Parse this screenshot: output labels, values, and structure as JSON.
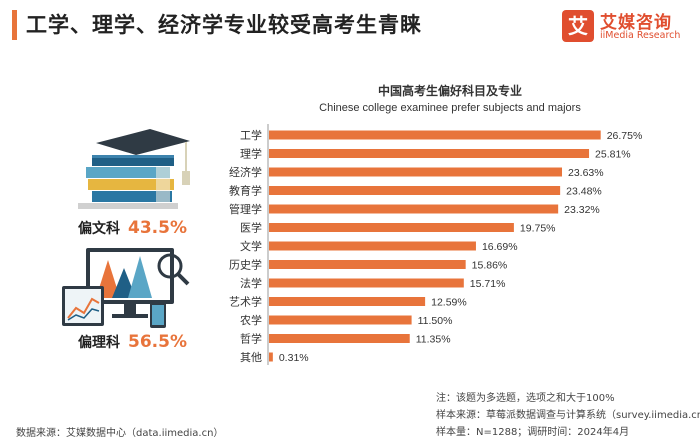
{
  "header": {
    "title": "工学、理学、经济学专业较受高考生青睐"
  },
  "brand": {
    "mark": "艾",
    "name": "艾媒咨询",
    "sub": "iiMedia Research",
    "color": "#e04e2f"
  },
  "left_panel": {
    "liberal": {
      "label": "偏文科",
      "value": "43.5%"
    },
    "science": {
      "label": "偏理科",
      "value": "56.5%"
    }
  },
  "chart_data": {
    "type": "bar",
    "orientation": "horizontal",
    "title": "中国高考生偏好科目及专业",
    "subtitle": "Chinese college examinee prefer subjects and majors",
    "categories": [
      "工学",
      "理学",
      "经济学",
      "教育学",
      "管理学",
      "医学",
      "文学",
      "历史学",
      "法学",
      "艺术学",
      "农学",
      "哲学",
      "其他"
    ],
    "values": [
      26.75,
      25.81,
      23.63,
      23.48,
      23.32,
      19.75,
      16.69,
      15.86,
      15.71,
      12.59,
      11.5,
      11.35,
      0.31
    ],
    "labels": [
      "26.75%",
      "25.81%",
      "23.63%",
      "23.48%",
      "23.32%",
      "19.75%",
      "16.69%",
      "15.86%",
      "15.71%",
      "12.59%",
      "11.50%",
      "11.35%",
      "0.31%"
    ],
    "unit": "%",
    "xlim": [
      0,
      30
    ],
    "bar_color": "#e8743b",
    "grid": false,
    "legend": "none"
  },
  "footer": {
    "note": "注：该题为多选题，选项之和大于100%",
    "sample_source": "样本来源：草莓派数据调查与计算系统（survey.iimedia.cn）",
    "sample_info": "样本量：N=1288；调研时间：2024年4月",
    "data_source": "数据来源：艾媒数据中心（data.iimedia.cn）"
  }
}
